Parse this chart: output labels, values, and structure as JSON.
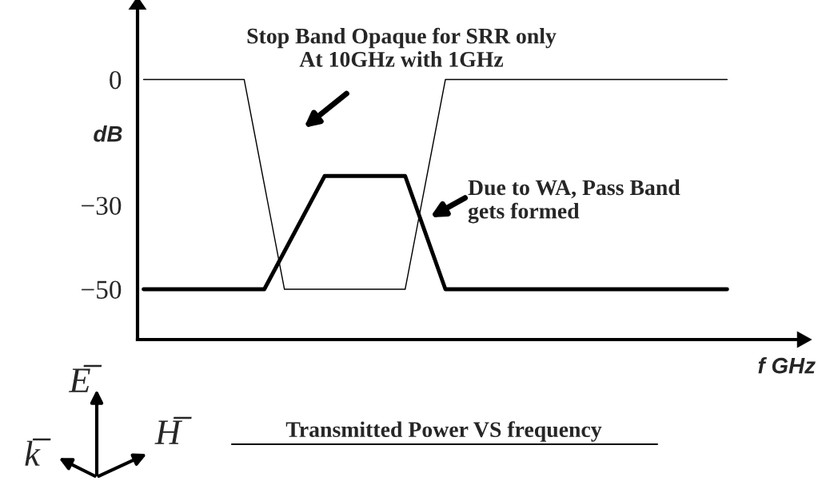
{
  "chart_data": {
    "type": "line",
    "title": "Transmitted Power VS frequency",
    "xlabel": "f GHz",
    "ylabel": "dB",
    "categories": [
      null,
      null,
      null,
      null,
      null,
      null,
      null,
      null,
      null,
      null,
      null,
      null,
      null,
      null,
      null,
      null,
      null,
      null,
      null,
      null,
      null,
      null,
      null,
      null,
      null,
      null,
      null,
      null,
      null,
      null
    ],
    "series": [
      {
        "color": "#000000",
        "values": [
          0,
          0,
          0,
          0,
          0,
          0,
          -25,
          -50,
          -50,
          -50,
          -50,
          -50,
          -50,
          -50,
          -25,
          0,
          0,
          0,
          0,
          0,
          0,
          0,
          0,
          0,
          0,
          0,
          0,
          0,
          0,
          0
        ]
      },
      {
        "color": "#000000",
        "values": [
          -50,
          -50,
          -50,
          -50,
          -50,
          -50,
          -50,
          -41,
          -32,
          -23,
          -23,
          -23,
          -23,
          -23,
          -36.5,
          -50,
          -50,
          -50,
          -50,
          -50,
          -50,
          -50,
          -50,
          -50,
          -50,
          -50,
          -50,
          -50,
          -50,
          -50
        ]
      }
    ],
    "ylim": [
      -62,
      18
    ],
    "yticks": [
      0,
      -30,
      -50
    ],
    "tick_labels": "y",
    "grid": false,
    "legend": false,
    "marker": "none",
    "line_style": "solid",
    "annotations": [
      "Stop Band Opaque for SRR only\nAt 10GHz with 1GHz",
      "Due to WA, Pass Band\ngets formed",
      "E̅",
      "H̅",
      "k̅"
    ]
  }
}
